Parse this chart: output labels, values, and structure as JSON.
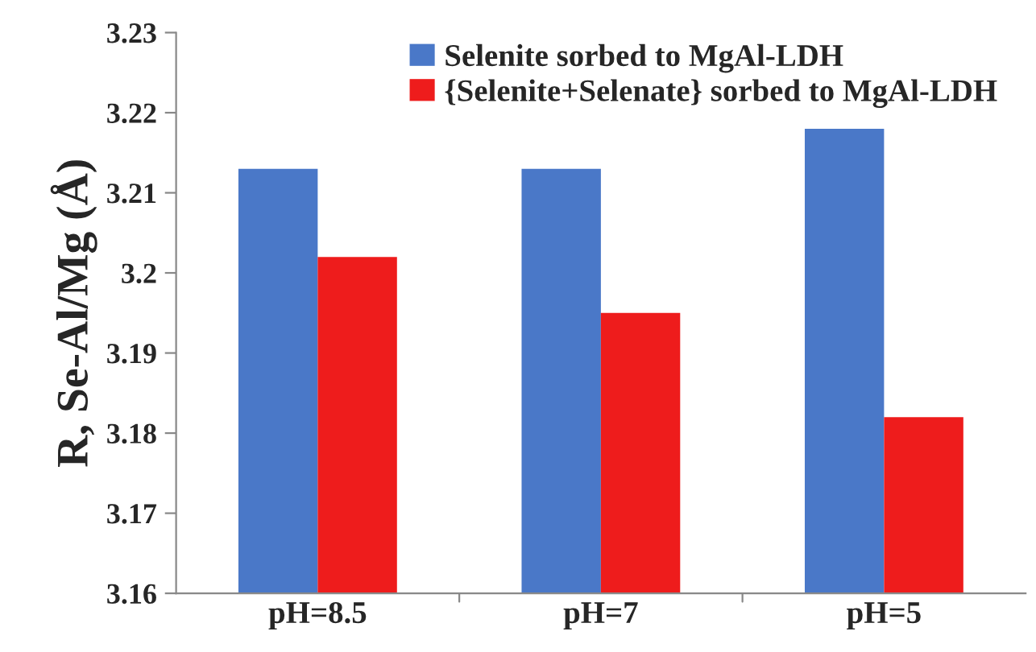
{
  "chart_data": {
    "type": "bar",
    "ylabel": "R, Se-Al/Mg (Å)",
    "categories": [
      "pH=8.5",
      "pH=7",
      "pH=5"
    ],
    "series": [
      {
        "name": "Selenite sorbed to MgAl-LDH",
        "color": "#4a78c8",
        "values": [
          3.213,
          3.213,
          3.218
        ]
      },
      {
        "name": "{Selenite+Selenate} sorbed to MgAl-LDH",
        "color": "#ee1c1c",
        "values": [
          3.202,
          3.195,
          3.182
        ]
      }
    ],
    "ylim": [
      3.16,
      3.23
    ],
    "yticks": [
      3.16,
      3.17,
      3.18,
      3.19,
      3.2,
      3.21,
      3.22,
      3.23
    ],
    "grid": false,
    "legend": "top right"
  }
}
